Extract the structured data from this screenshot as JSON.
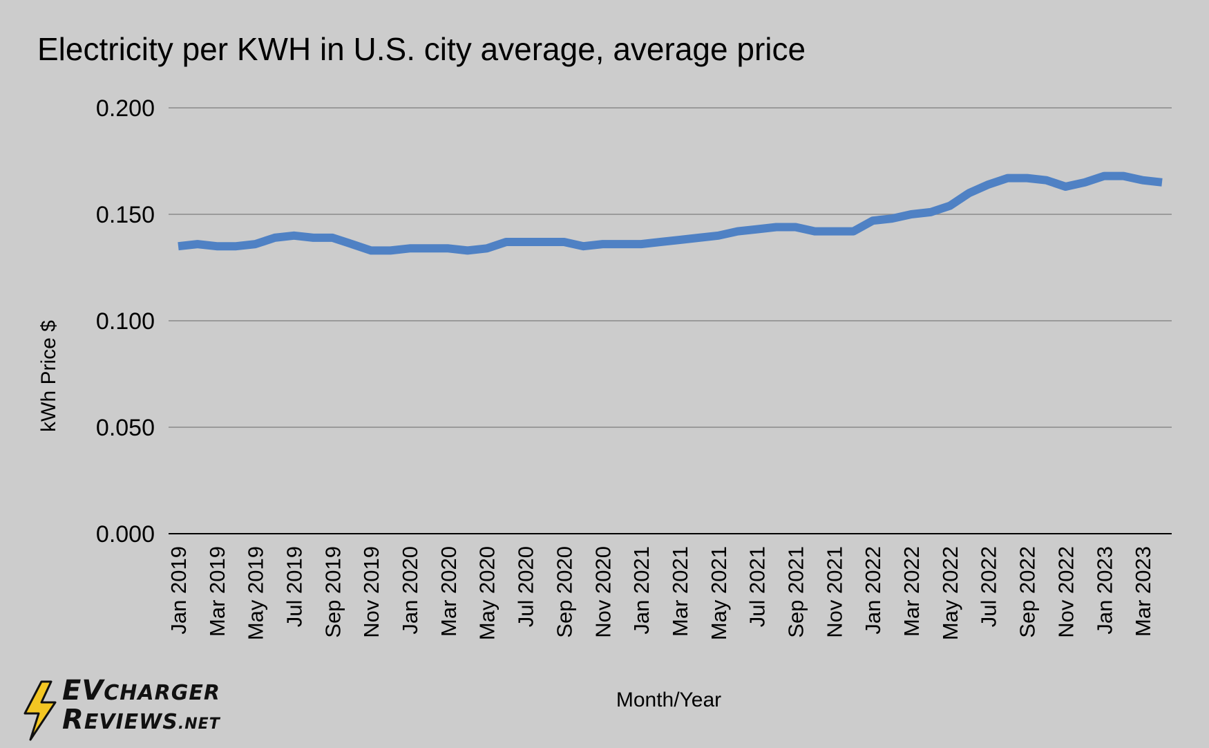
{
  "chart_data": {
    "type": "line",
    "title": "Electricity per KWH in U.S. city average, average price",
    "xlabel": "Month/Year",
    "ylabel": "kWh Price $",
    "ylim": [
      0,
      0.2
    ],
    "yticks": [
      "0.000",
      "0.050",
      "0.100",
      "0.150",
      "0.200"
    ],
    "grid": true,
    "legend": "none",
    "x": [
      "Jan 2019",
      "Feb 2019",
      "Mar 2019",
      "Apr 2019",
      "May 2019",
      "Jun 2019",
      "Jul 2019",
      "Aug 2019",
      "Sep 2019",
      "Oct 2019",
      "Nov 2019",
      "Dec 2019",
      "Jan 2020",
      "Feb 2020",
      "Mar 2020",
      "Apr 2020",
      "May 2020",
      "Jun 2020",
      "Jul 2020",
      "Aug 2020",
      "Sep 2020",
      "Oct 2020",
      "Nov 2020",
      "Dec 2020",
      "Jan 2021",
      "Feb 2021",
      "Mar 2021",
      "Apr 2021",
      "May 2021",
      "Jun 2021",
      "Jul 2021",
      "Aug 2021",
      "Sep 2021",
      "Oct 2021",
      "Nov 2021",
      "Dec 2021",
      "Jan 2022",
      "Feb 2022",
      "Mar 2022",
      "Apr 2022",
      "May 2022",
      "Jun 2022",
      "Jul 2022",
      "Aug 2022",
      "Sep 2022",
      "Oct 2022",
      "Nov 2022",
      "Dec 2022",
      "Jan 2023",
      "Feb 2023",
      "Mar 2023",
      "Apr 2023"
    ],
    "x_tick_labels": [
      "Jan 2019",
      "Mar 2019",
      "May 2019",
      "Jul 2019",
      "Sep 2019",
      "Nov 2019",
      "Jan 2020",
      "Mar 2020",
      "May 2020",
      "Jul 2020",
      "Sep 2020",
      "Nov 2020",
      "Jan 2021",
      "Mar 2021",
      "May 2021",
      "Jul 2021",
      "Sep 2021",
      "Nov 2021",
      "Jan 2022",
      "Mar 2022",
      "May 2022",
      "Jul 2022",
      "Sep 2022",
      "Nov 2022",
      "Jan 2023",
      "Mar 2023"
    ],
    "series": [
      {
        "color": "#4f81c4",
        "values": [
          0.135,
          0.136,
          0.135,
          0.135,
          0.136,
          0.139,
          0.14,
          0.139,
          0.139,
          0.136,
          0.133,
          0.133,
          0.134,
          0.134,
          0.134,
          0.133,
          0.134,
          0.137,
          0.137,
          0.137,
          0.137,
          0.135,
          0.136,
          0.136,
          0.136,
          0.137,
          0.138,
          0.139,
          0.14,
          0.142,
          0.143,
          0.144,
          0.144,
          0.142,
          0.142,
          0.142,
          0.147,
          0.148,
          0.15,
          0.151,
          0.154,
          0.16,
          0.164,
          0.167,
          0.167,
          0.166,
          0.163,
          0.165,
          0.168,
          0.168,
          0.166,
          0.165
        ]
      }
    ]
  },
  "logo": {
    "line1_big": "EV",
    "line1_rest": "CHARGER",
    "line2_big": "R",
    "line2_rest": "EVIEWS",
    "line2_suffix": ".NET",
    "bolt_color": "#f3c623"
  }
}
